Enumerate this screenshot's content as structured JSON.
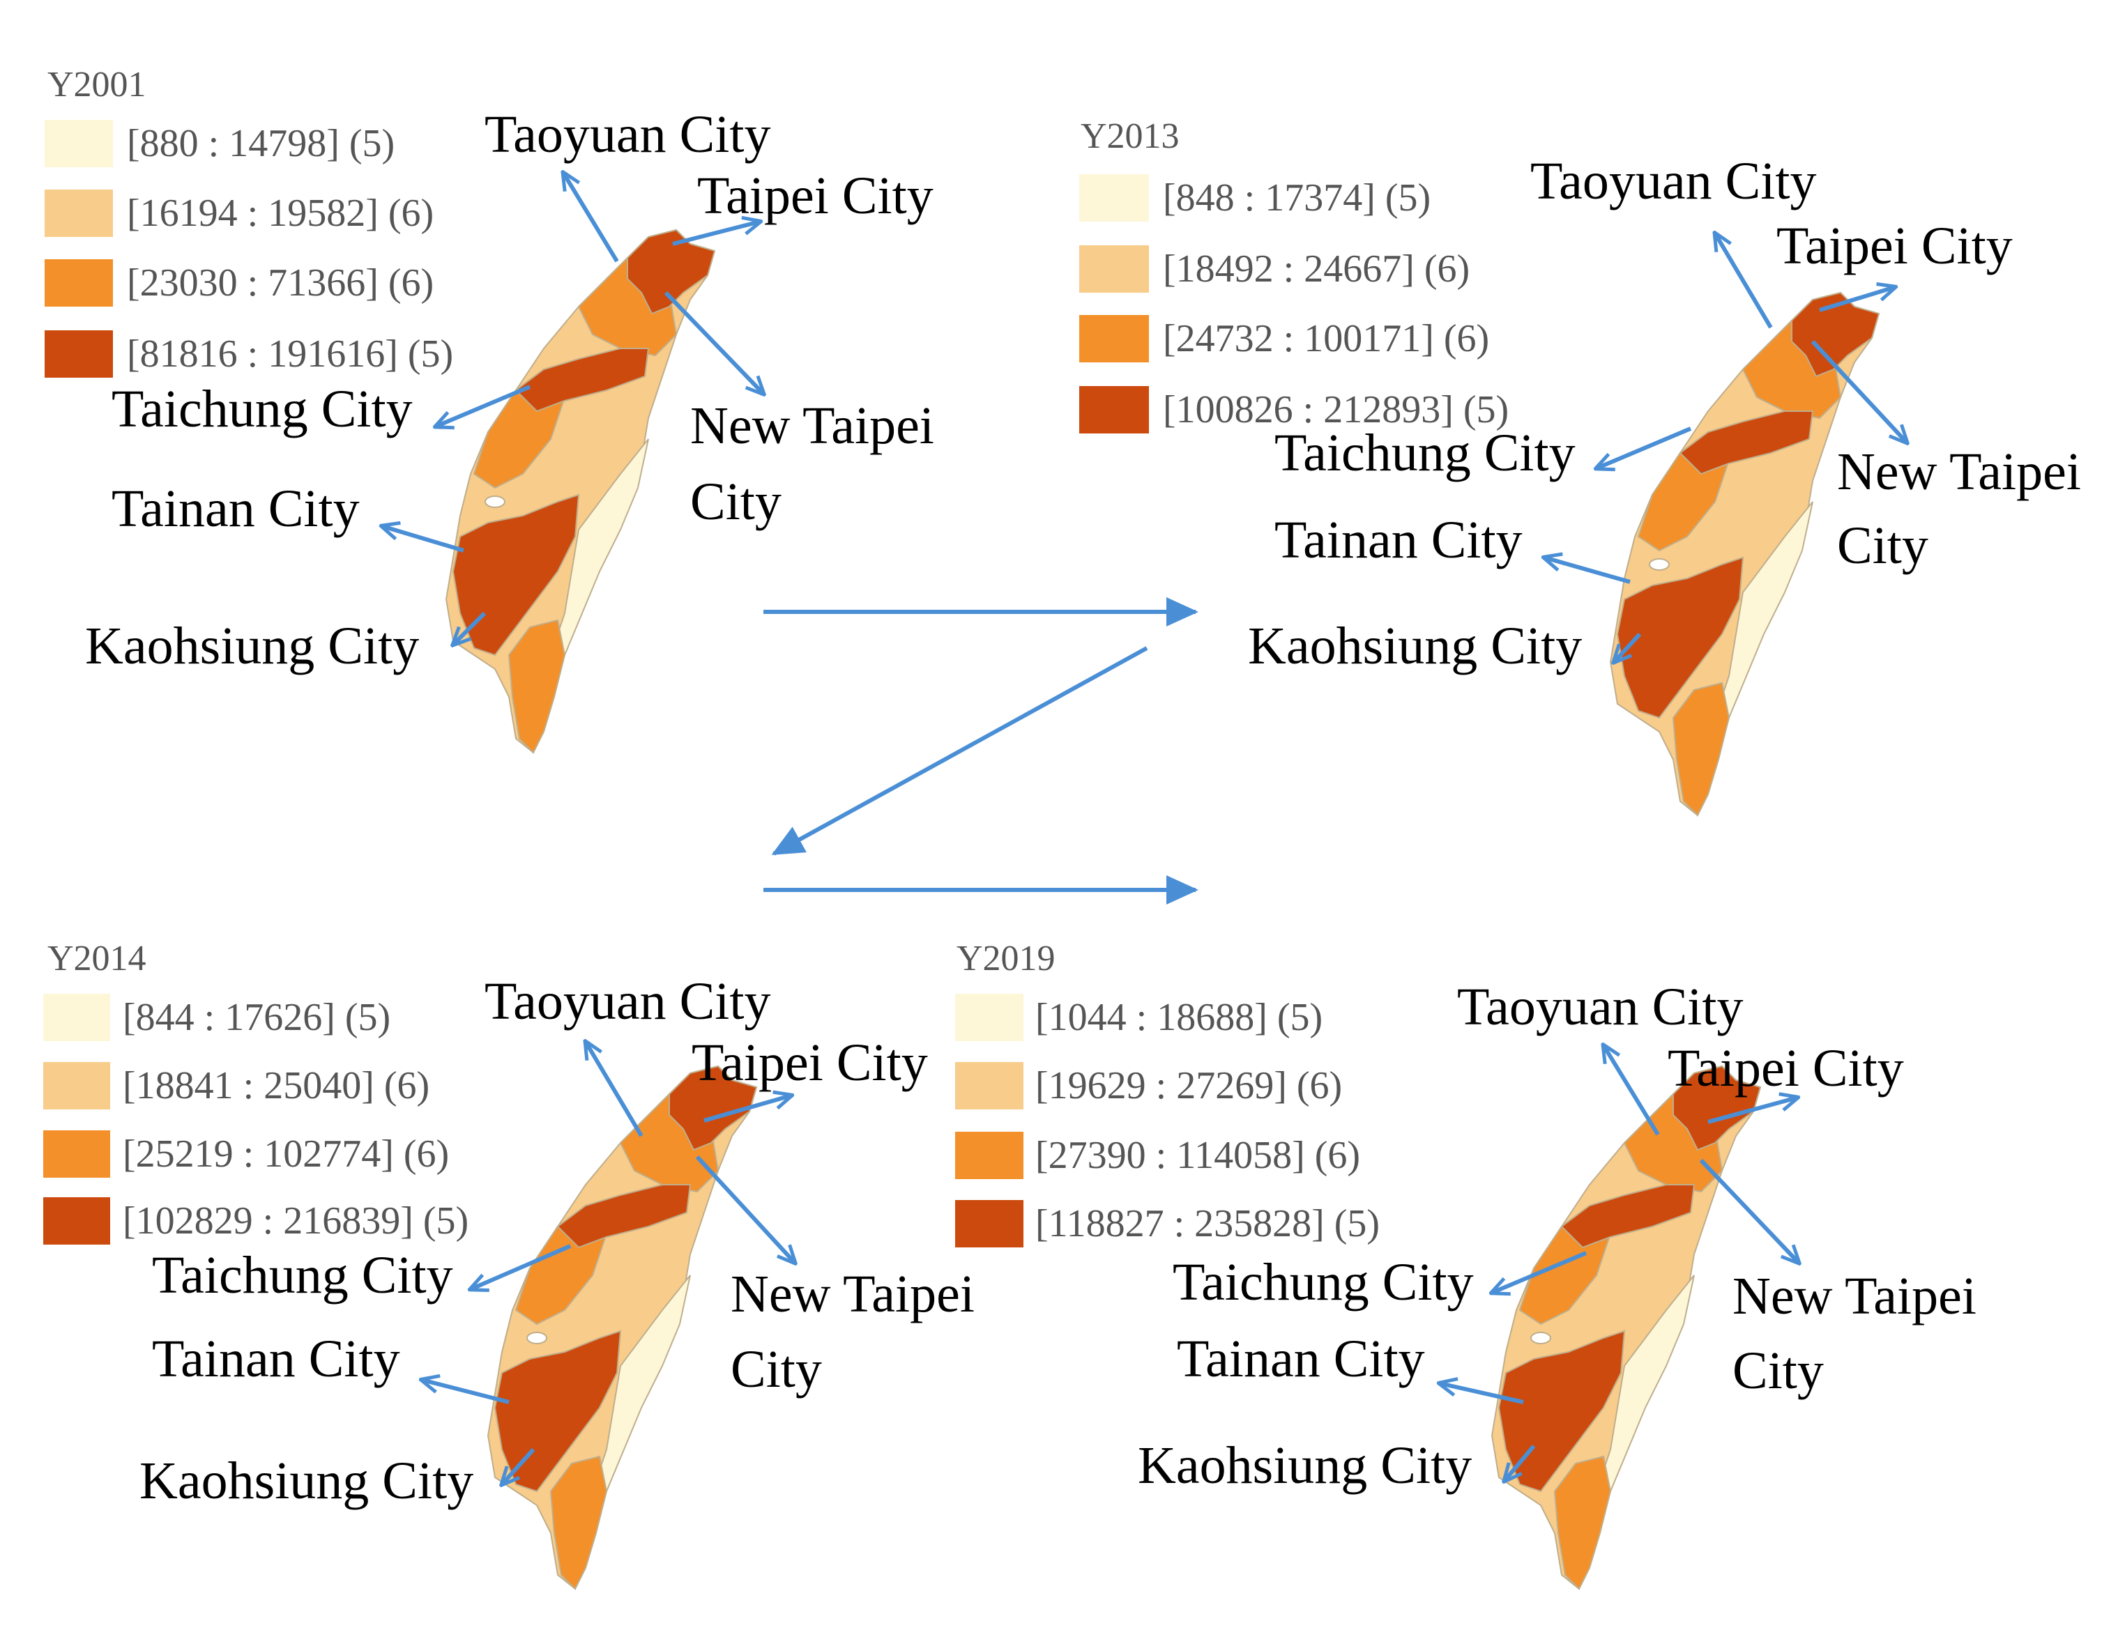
{
  "colors": {
    "class1": "#fdf7d8",
    "class2": "#f8cc8a",
    "class3": "#f3902a",
    "class4": "#cc4a0e",
    "arrow": "#4a8fd6"
  },
  "panels": [
    {
      "year": "Y2001",
      "legend": [
        "[880 : 14798] (5)",
        "[16194 : 19582] (6)",
        "[23030 : 71366] (6)",
        "[81816 : 191616] (5)"
      ],
      "labels": {
        "taoyuan": "Taoyuan City",
        "taipei": "Taipei City",
        "taichung": "Taichung City",
        "new_taipei_1": "New Taipei",
        "new_taipei_2": "City",
        "tainan": "Tainan City",
        "kaohsiung": "Kaohsiung City"
      }
    },
    {
      "year": "Y2013",
      "legend": [
        "[848 : 17374] (5)",
        "[18492 : 24667] (6)",
        "[24732 : 100171] (6)",
        "[100826 : 212893] (5)"
      ],
      "labels": {
        "taoyuan": "Taoyuan City",
        "taipei": "Taipei City",
        "taichung": "Taichung City",
        "new_taipei_1": "New Taipei",
        "new_taipei_2": "City",
        "tainan": "Tainan City",
        "kaohsiung": "Kaohsiung City"
      }
    },
    {
      "year": "Y2014",
      "legend": [
        "[844 : 17626] (5)",
        "[18841 : 25040] (6)",
        "[25219 : 102774] (6)",
        "[102829 : 216839] (5)"
      ],
      "labels": {
        "taoyuan": "Taoyuan City",
        "taipei": "Taipei City",
        "taichung": "Taichung City",
        "new_taipei_1": "New Taipei",
        "new_taipei_2": "City",
        "tainan": "Tainan City",
        "kaohsiung": "Kaohsiung City"
      }
    },
    {
      "year": "Y2019",
      "legend": [
        "[1044 : 18688] (5)",
        "[19629 : 27269] (6)",
        "[27390 : 114058] (6)",
        "[118827 : 235828] (5)"
      ],
      "labels": {
        "taoyuan": "Taoyuan City",
        "taipei": "Taipei City",
        "taichung": "Taichung City",
        "new_taipei_1": "New Taipei",
        "new_taipei_2": "City",
        "tainan": "Tainan City",
        "kaohsiung": "Kaohsiung City"
      }
    }
  ]
}
